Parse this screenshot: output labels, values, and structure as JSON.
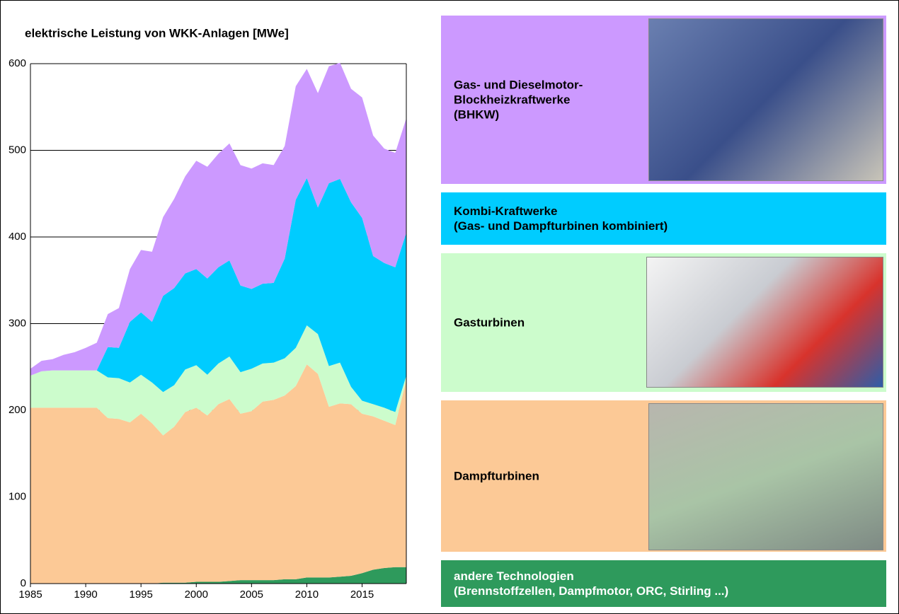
{
  "chart_data": {
    "type": "stacked_area",
    "title": "elektrische Leistung von WKK-Anlagen  [MWe]",
    "x": [
      1985,
      1986,
      1987,
      1988,
      1989,
      1990,
      1991,
      1992,
      1993,
      1994,
      1995,
      1996,
      1997,
      1998,
      1999,
      2000,
      2001,
      2002,
      2003,
      2004,
      2005,
      2006,
      2007,
      2008,
      2009,
      2010,
      2011,
      2012,
      2013,
      2014,
      2015,
      2016,
      2017,
      2018,
      2019
    ],
    "xlim": [
      1985,
      2019
    ],
    "xticks": [
      1985,
      1990,
      1995,
      2000,
      2005,
      2010,
      2015
    ],
    "ylim": [
      0,
      600
    ],
    "yticks": [
      0,
      100,
      200,
      300,
      400,
      500,
      600
    ],
    "grid": true,
    "series": [
      {
        "name": "andere Technologien\n(Brennstoffzellen, Dampfmotor, ORC, Stirling ...)",
        "color": "#2e9a5c",
        "values": [
          0,
          0,
          0,
          0,
          0,
          0,
          0,
          0,
          0,
          0,
          0,
          0,
          1,
          1,
          1,
          2,
          2,
          2,
          3,
          4,
          4,
          4,
          4,
          5,
          5,
          7,
          7,
          7,
          8,
          9,
          12,
          16,
          18,
          19,
          19
        ]
      },
      {
        "name": "Dampfturbinen",
        "color": "#fcc996",
        "values": [
          203,
          203,
          203,
          203,
          203,
          203,
          203,
          191,
          190,
          186,
          196,
          185,
          170,
          180,
          197,
          201,
          192,
          205,
          210,
          192,
          195,
          206,
          208,
          212,
          223,
          246,
          235,
          197,
          200,
          198,
          184,
          177,
          170,
          164,
          216
        ]
      },
      {
        "name": "Gasturbinen",
        "color": "#ccfccc",
        "values": [
          37,
          42,
          43,
          43,
          43,
          43,
          43,
          47,
          47,
          46,
          45,
          47,
          50,
          48,
          49,
          49,
          47,
          47,
          49,
          48,
          49,
          44,
          43,
          43,
          44,
          45,
          46,
          47,
          47,
          20,
          15,
          14,
          15,
          15,
          5
        ]
      },
      {
        "name": "Kombi-Kraftwerke\n(Gas- und Dampfturbinen kombiniert)",
        "color": "#00ccff",
        "values": [
          0,
          0,
          0,
          0,
          0,
          0,
          0,
          35,
          35,
          70,
          72,
          70,
          111,
          112,
          111,
          111,
          111,
          111,
          111,
          100,
          92,
          92,
          92,
          115,
          171,
          170,
          146,
          211,
          212,
          213,
          211,
          171,
          167,
          167,
          165
        ]
      },
      {
        "name": "Gas- und Dieselmotor-\nBlockheizkraftwerke\n(BHKW)",
        "color": "#cc99ff",
        "values": [
          8,
          12,
          13,
          18,
          21,
          26,
          32,
          38,
          46,
          61,
          72,
          81,
          91,
          103,
          112,
          125,
          129,
          131,
          135,
          139,
          139,
          139,
          136,
          130,
          131,
          126,
          132,
          135,
          134,
          131,
          139,
          139,
          132,
          132,
          132
        ]
      }
    ]
  }
}
